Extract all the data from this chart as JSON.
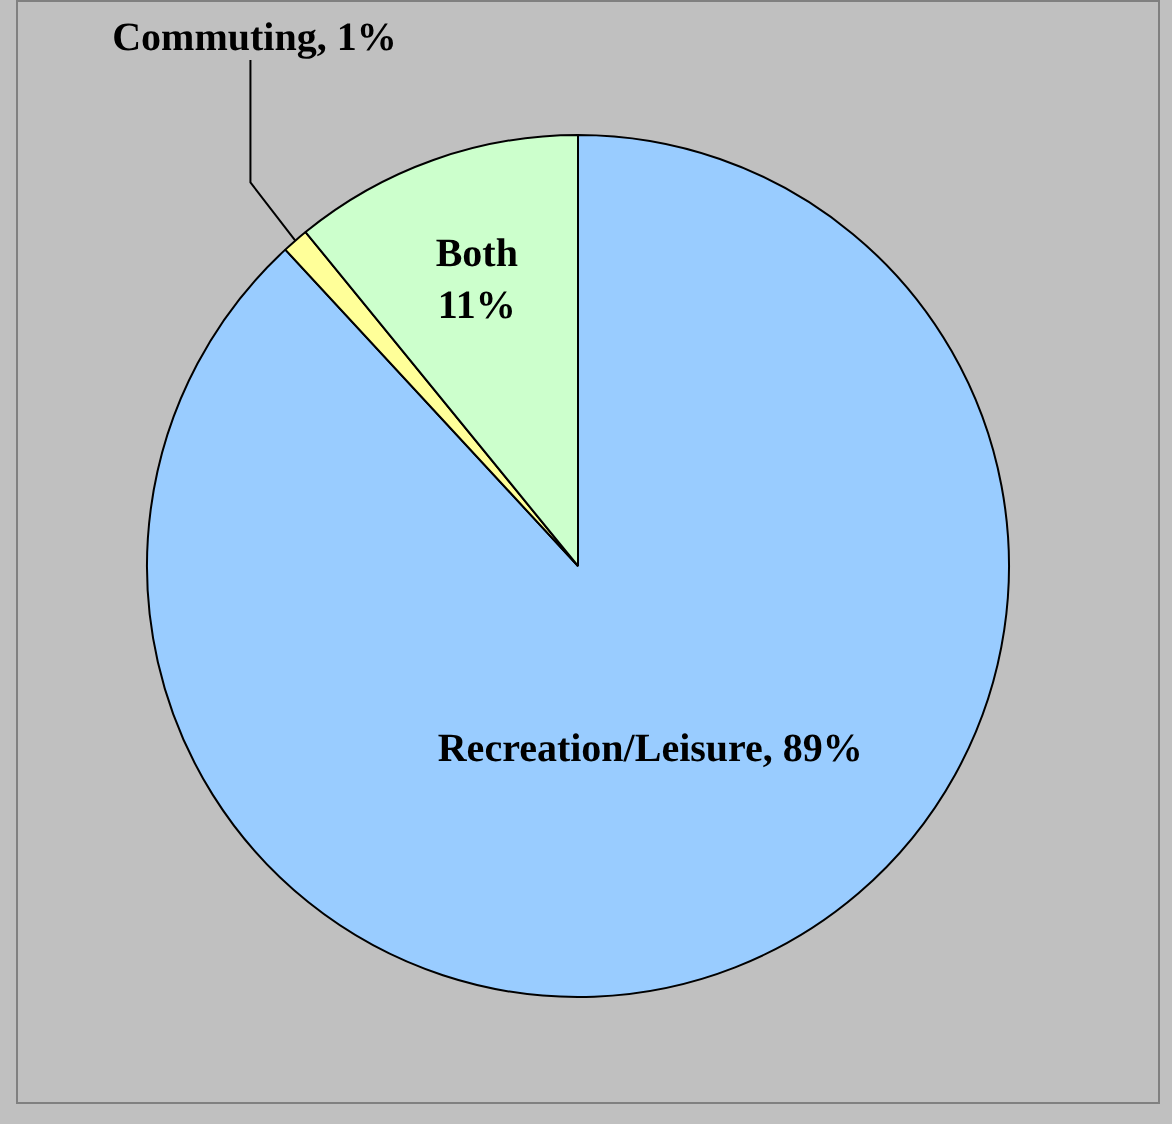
{
  "chart_data": {
    "type": "pie",
    "categories": [
      "Recreation/Leisure",
      "Commuting",
      "Both"
    ],
    "values": [
      89,
      1,
      11
    ],
    "colors": [
      "#99ccff",
      "#ffff99",
      "#ccffcc"
    ],
    "value_labels": [
      ", 89%",
      ", 1%",
      "11%"
    ],
    "legend": false
  }
}
